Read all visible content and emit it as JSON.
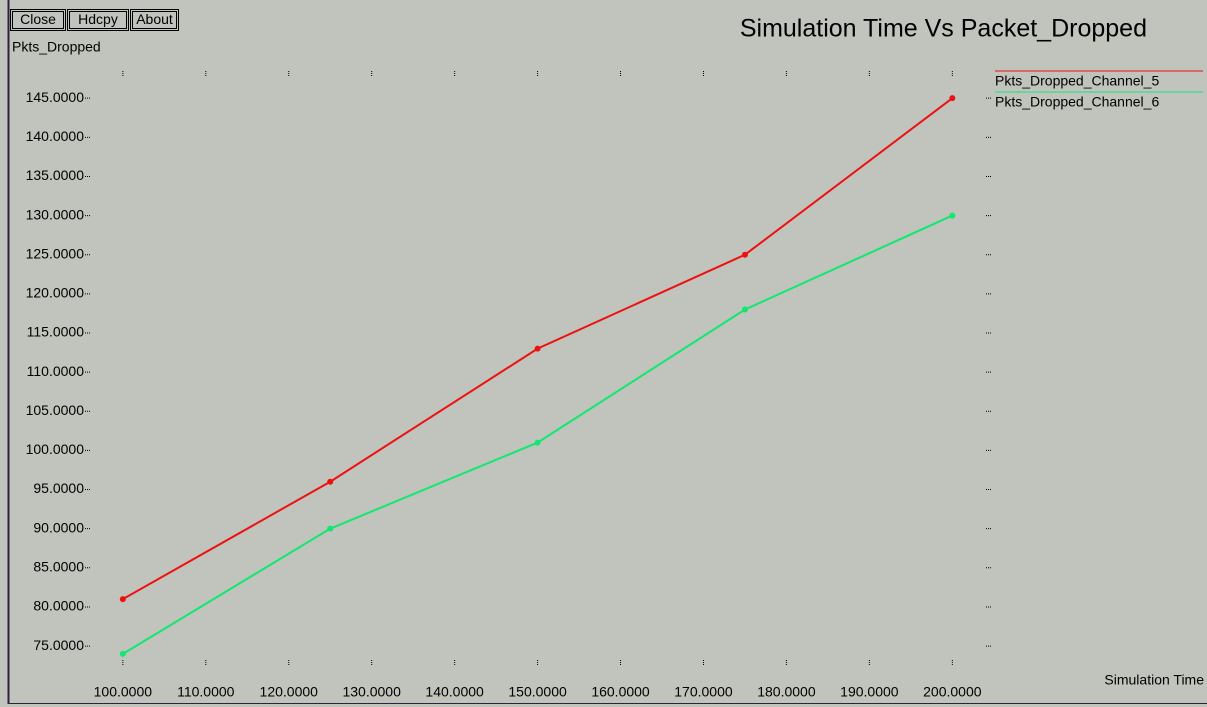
{
  "buttons": [
    "Close",
    "Hdcpy",
    "About"
  ],
  "chart_data": {
    "type": "line",
    "title": "Simulation Time Vs Packet_Dropped",
    "y_label": "Pkts_Dropped",
    "x_label": "Simulation Time",
    "x": [
      100,
      125,
      150,
      175,
      200
    ],
    "series": [
      {
        "name": "Pkts_Dropped_Channel_5",
        "color": "#ee1111",
        "values": [
          81,
          96,
          113,
          125,
          145
        ]
      },
      {
        "name": "Pkts_Dropped_Channel_6",
        "color": "#11e870",
        "values": [
          74,
          90,
          101,
          118,
          130
        ]
      }
    ],
    "xlim": [
      95.8,
      204.3
    ],
    "ylim": [
      72.2,
      148.6
    ],
    "xticks": [
      {
        "value": 100,
        "label": "100.0000"
      },
      {
        "value": 110,
        "label": "110.0000"
      },
      {
        "value": 120,
        "label": "120.0000"
      },
      {
        "value": 130,
        "label": "130.0000"
      },
      {
        "value": 140,
        "label": "140.0000"
      },
      {
        "value": 150,
        "label": "150.0000"
      },
      {
        "value": 160,
        "label": "160.0000"
      },
      {
        "value": 170,
        "label": "170.0000"
      },
      {
        "value": 180,
        "label": "180.0000"
      },
      {
        "value": 190,
        "label": "190.0000"
      },
      {
        "value": 200,
        "label": "200.0000"
      }
    ],
    "yticks": [
      {
        "value": 75,
        "label": "75.0000"
      },
      {
        "value": 80,
        "label": "80.0000"
      },
      {
        "value": 85,
        "label": "85.0000"
      },
      {
        "value": 90,
        "label": "90.0000"
      },
      {
        "value": 95,
        "label": "95.0000"
      },
      {
        "value": 100,
        "label": "100.0000"
      },
      {
        "value": 105,
        "label": "105.0000"
      },
      {
        "value": 110,
        "label": "110.0000"
      },
      {
        "value": 115,
        "label": "115.0000"
      },
      {
        "value": 120,
        "label": "120.0000"
      },
      {
        "value": 125,
        "label": "125.0000"
      },
      {
        "value": 130,
        "label": "130.0000"
      },
      {
        "value": 135,
        "label": "135.0000"
      },
      {
        "value": 140,
        "label": "140.0000"
      },
      {
        "value": 145,
        "label": "145.0000"
      }
    ],
    "legend": "top-right",
    "markers": true
  }
}
